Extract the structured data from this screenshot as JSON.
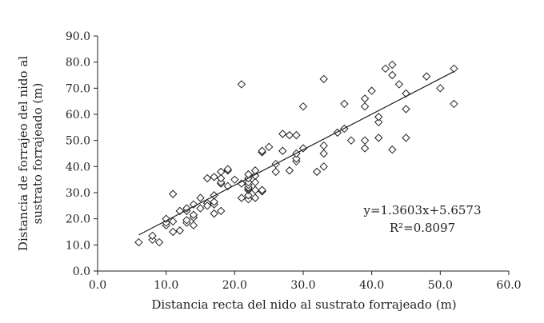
{
  "chart_data": {
    "type": "scatter",
    "title": "",
    "xlabel": "Distancia recta del nido al sustrato forrajeado (m)",
    "ylabel_line1": "Distancia de forrajeo del nido al",
    "ylabel_line2": "sustrato forrajeado (m)",
    "xlim": [
      0,
      60
    ],
    "ylim": [
      0,
      90
    ],
    "x_ticks": [
      "0.0",
      "10.0",
      "20.0",
      "30.0",
      "40.0",
      "50.0",
      "60.0"
    ],
    "y_ticks": [
      "0.0",
      "10.0",
      "20.0",
      "30.0",
      "40.0",
      "50.0",
      "60.0",
      "70.0",
      "80.0",
      "90.0"
    ],
    "grid": false,
    "marker": "diamond-open",
    "trendline": {
      "slope": 1.3603,
      "intercept": 5.6573,
      "x_range": [
        6,
        52
      ]
    },
    "equation": "y=1.3603x+5.6573",
    "r_squared_label": "R²=0.8097",
    "colors": {
      "marker_stroke": "#231f20",
      "line": "#231f20",
      "axis": "#231f20"
    },
    "points": [
      [
        6,
        11
      ],
      [
        8,
        12
      ],
      [
        8,
        13.5
      ],
      [
        9,
        11
      ],
      [
        10,
        17.5
      ],
      [
        10,
        18.5
      ],
      [
        10,
        20
      ],
      [
        11,
        29.5
      ],
      [
        11,
        19
      ],
      [
        11,
        15
      ],
      [
        12,
        15.5
      ],
      [
        12,
        23
      ],
      [
        13,
        18.5
      ],
      [
        13,
        19.5
      ],
      [
        13,
        23
      ],
      [
        13,
        24
      ],
      [
        14,
        17.5
      ],
      [
        14,
        20.5
      ],
      [
        14,
        21.5
      ],
      [
        14,
        25.5
      ],
      [
        15,
        28
      ],
      [
        15,
        24
      ],
      [
        16,
        26
      ],
      [
        16,
        25
      ],
      [
        16,
        35.5
      ],
      [
        17,
        22
      ],
      [
        17,
        25.5
      ],
      [
        17,
        26.5
      ],
      [
        17,
        29
      ],
      [
        17,
        36
      ],
      [
        18,
        23
      ],
      [
        18,
        33.5
      ],
      [
        18,
        34
      ],
      [
        18,
        35.5
      ],
      [
        18,
        38
      ],
      [
        19,
        32.5
      ],
      [
        19,
        38.5
      ],
      [
        19,
        39
      ],
      [
        20,
        35
      ],
      [
        21,
        28
      ],
      [
        21,
        33.5
      ],
      [
        21,
        71.5
      ],
      [
        22,
        27.5
      ],
      [
        22,
        29
      ],
      [
        22,
        31
      ],
      [
        22,
        31.5
      ],
      [
        22,
        32
      ],
      [
        22,
        33
      ],
      [
        22,
        34
      ],
      [
        22,
        35.5
      ],
      [
        22,
        37
      ],
      [
        23,
        28
      ],
      [
        23,
        31
      ],
      [
        23,
        34
      ],
      [
        23,
        36.5
      ],
      [
        23,
        38.5
      ],
      [
        24,
        30.5
      ],
      [
        24,
        31
      ],
      [
        24,
        45.5
      ],
      [
        24,
        46
      ],
      [
        25,
        47.5
      ],
      [
        26,
        38
      ],
      [
        26,
        41
      ],
      [
        27,
        46
      ],
      [
        27,
        52.5
      ],
      [
        28,
        38.5
      ],
      [
        28,
        52
      ],
      [
        29,
        42
      ],
      [
        29,
        43
      ],
      [
        29,
        45
      ],
      [
        29,
        52
      ],
      [
        30,
        47
      ],
      [
        30,
        63
      ],
      [
        32,
        38
      ],
      [
        33,
        40
      ],
      [
        33,
        45
      ],
      [
        33,
        48
      ],
      [
        33,
        73.5
      ],
      [
        35,
        53
      ],
      [
        36,
        54.5
      ],
      [
        36,
        64
      ],
      [
        37,
        50
      ],
      [
        39,
        47
      ],
      [
        39,
        50
      ],
      [
        39,
        63
      ],
      [
        39,
        66
      ],
      [
        40,
        69
      ],
      [
        41,
        51
      ],
      [
        41,
        57
      ],
      [
        41,
        59
      ],
      [
        42,
        77.5
      ],
      [
        43,
        46.5
      ],
      [
        43,
        75
      ],
      [
        43,
        79
      ],
      [
        44,
        71.5
      ],
      [
        45,
        51
      ],
      [
        45,
        62
      ],
      [
        45,
        68
      ],
      [
        48,
        74.5
      ],
      [
        50,
        70
      ],
      [
        52,
        64
      ],
      [
        52,
        77.5
      ]
    ]
  }
}
